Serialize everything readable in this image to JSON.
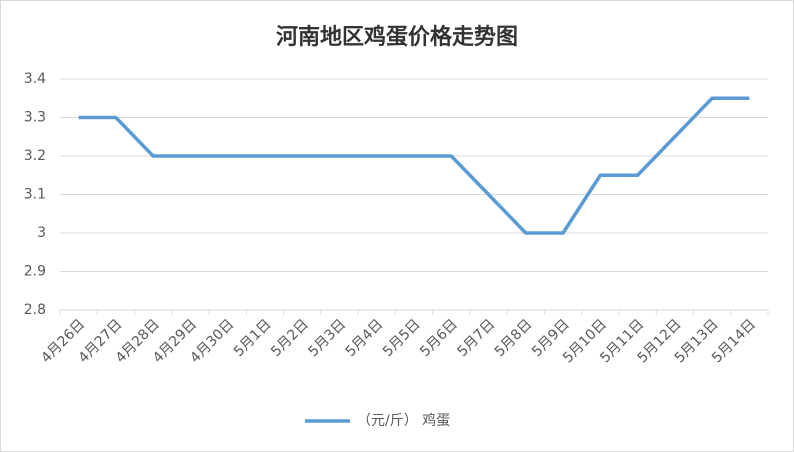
{
  "chart_data": {
    "type": "line",
    "title": "河南地区鸡蛋价格走势图",
    "categories": [
      "4月26日",
      "4月27日",
      "4月28日",
      "4月29日",
      "4月30日",
      "5月1日",
      "5月2日",
      "5月3日",
      "5月4日",
      "5月5日",
      "5月6日",
      "5月7日",
      "5月8日",
      "5月9日",
      "5月10日",
      "5月11日",
      "5月12日",
      "5月13日",
      "5月14日"
    ],
    "series": [
      {
        "name": "（元/斤） 鸡蛋",
        "color": "#5b9bd5",
        "values": [
          3.3,
          3.3,
          3.2,
          3.2,
          3.2,
          3.2,
          3.2,
          3.2,
          3.2,
          3.2,
          3.2,
          3.1,
          3.0,
          3.0,
          3.15,
          3.15,
          3.25,
          3.35,
          3.35
        ]
      }
    ],
    "ylim": [
      2.8,
      3.4
    ],
    "yticks": [
      2.8,
      2.9,
      3,
      3.1,
      3.2,
      3.3,
      3.4
    ],
    "grid": true,
    "legend": "bottom"
  }
}
